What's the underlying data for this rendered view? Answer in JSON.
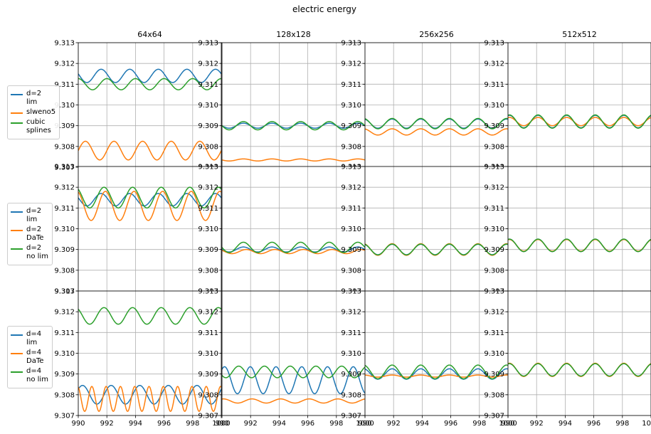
{
  "chart_data": {
    "type": "line",
    "title": "electric energy",
    "column_titles": [
      "64x64",
      "128x128",
      "256x256",
      "512x512"
    ],
    "x_ticks": [
      "990",
      "992",
      "994",
      "996",
      "998",
      "1000"
    ],
    "y_ticks": [
      "9.307",
      "9.308",
      "9.309",
      "9.310",
      "9.311",
      "9.312",
      "9.313"
    ],
    "xlim": [
      990,
      1000
    ],
    "ylim": [
      9.307,
      9.313
    ],
    "grid": true,
    "legend_placement": "left of each row",
    "colors": {
      "blue": "#1f77b4",
      "orange": "#ff7f0e",
      "green": "#2ca02c"
    },
    "rows": [
      {
        "legend": [
          {
            "label": "d=2\nlim",
            "color": "#1f77b4"
          },
          {
            "label": "slweno5",
            "color": "#ff7f0e"
          },
          {
            "label": "cubic\nsplines",
            "color": "#2ca02c"
          }
        ],
        "panels": [
          {
            "series": [
              {
                "color": "#1f77b4",
                "mean": 9.3114,
                "amp": 0.00032,
                "period": 2.0,
                "phase": 0.45
              },
              {
                "color": "#ff7f0e",
                "mean": 9.3078,
                "amp": 0.00045,
                "period": 2.0,
                "phase": 0.0
              },
              {
                "color": "#2ca02c",
                "mean": 9.311,
                "amp": 0.00027,
                "period": 2.0,
                "phase": 0.25
              }
            ]
          },
          {
            "series": [
              {
                "color": "#1f77b4",
                "mean": 9.309,
                "amp": 0.00012,
                "period": 2.0,
                "phase": 0.5
              },
              {
                "color": "#ff7f0e",
                "mean": 9.30735,
                "amp": 5e-05,
                "period": 2.0,
                "phase": 0.5
              },
              {
                "color": "#2ca02c",
                "mean": 9.309,
                "amp": 0.0002,
                "period": 2.0,
                "phase": 0.5
              }
            ]
          },
          {
            "series": [
              {
                "color": "#1f77b4",
                "mean": 9.3091,
                "amp": 0.00022,
                "period": 2.0,
                "phase": 0.3
              },
              {
                "color": "#ff7f0e",
                "mean": 9.3087,
                "amp": 0.00015,
                "period": 2.0,
                "phase": 0.3
              },
              {
                "color": "#2ca02c",
                "mean": 9.3091,
                "amp": 0.00025,
                "period": 2.0,
                "phase": 0.3
              }
            ]
          },
          {
            "series": [
              {
                "color": "#1f77b4",
                "mean": 9.3092,
                "amp": 0.0003,
                "period": 2.0,
                "phase": 0.2
              },
              {
                "color": "#ff7f0e",
                "mean": 9.3092,
                "amp": 0.0002,
                "period": 2.0,
                "phase": 0.2
              },
              {
                "color": "#2ca02c",
                "mean": 9.3092,
                "amp": 0.00032,
                "period": 2.0,
                "phase": 0.2
              }
            ]
          }
        ]
      },
      {
        "legend": [
          {
            "label": "d=2\nlim",
            "color": "#1f77b4"
          },
          {
            "label": "d=2\nDaTe",
            "color": "#ff7f0e"
          },
          {
            "label": "d=2\nno lim",
            "color": "#2ca02c"
          }
        ],
        "panels": [
          {
            "series": [
              {
                "color": "#1f77b4",
                "mean": 9.3114,
                "amp": 0.0003,
                "period": 2.0,
                "phase": 0.45
              },
              {
                "color": "#ff7f0e",
                "mean": 9.3111,
                "amp": 0.0007,
                "period": 2.0,
                "phase": 0.3
              },
              {
                "color": "#2ca02c",
                "mean": 9.3115,
                "amp": 0.0005,
                "period": 2.0,
                "phase": 0.35
              }
            ]
          },
          {
            "series": [
              {
                "color": "#1f77b4",
                "mean": 9.309,
                "amp": 0.00012,
                "period": 2.0,
                "phase": 0.5
              },
              {
                "color": "#ff7f0e",
                "mean": 9.3089,
                "amp": 0.0001,
                "period": 2.0,
                "phase": 0.4
              },
              {
                "color": "#2ca02c",
                "mean": 9.3091,
                "amp": 0.00025,
                "period": 2.0,
                "phase": 0.5
              }
            ]
          },
          {
            "series": [
              {
                "color": "#1f77b4",
                "mean": 9.309,
                "amp": 0.00025,
                "period": 2.0,
                "phase": 0.3
              },
              {
                "color": "#ff7f0e",
                "mean": 9.309,
                "amp": 0.00028,
                "period": 2.0,
                "phase": 0.3
              },
              {
                "color": "#2ca02c",
                "mean": 9.309,
                "amp": 0.00026,
                "period": 2.0,
                "phase": 0.3
              }
            ]
          },
          {
            "series": [
              {
                "color": "#1f77b4",
                "mean": 9.3092,
                "amp": 0.0003,
                "period": 2.0,
                "phase": 0.2
              },
              {
                "color": "#ff7f0e",
                "mean": 9.3092,
                "amp": 0.00028,
                "period": 2.0,
                "phase": 0.2
              },
              {
                "color": "#2ca02c",
                "mean": 9.3092,
                "amp": 0.0003,
                "period": 2.0,
                "phase": 0.2
              }
            ]
          }
        ]
      },
      {
        "legend": [
          {
            "label": "d=4\nlim",
            "color": "#1f77b4"
          },
          {
            "label": "d=4\nDaTe",
            "color": "#ff7f0e"
          },
          {
            "label": "d=4\nno lim",
            "color": "#2ca02c"
          }
        ],
        "panels": [
          {
            "series": [
              {
                "color": "#1f77b4",
                "mean": 9.308,
                "amp": 0.00045,
                "period": 2.0,
                "phase": 0.1
              },
              {
                "color": "#ff7f0e",
                "mean": 9.3078,
                "amp": 0.0006,
                "period": 1.0,
                "phase": 0.3
              },
              {
                "color": "#2ca02c",
                "mean": 9.3118,
                "amp": 0.0004,
                "period": 2.0,
                "phase": 0.35
              }
            ]
          },
          {
            "series": [
              {
                "color": "#1f77b4",
                "mean": 9.3087,
                "amp": 0.00065,
                "period": 1.8,
                "phase": 0.15
              },
              {
                "color": "#ff7f0e",
                "mean": 9.3077,
                "amp": 0.0001,
                "period": 2.0,
                "phase": 0.2
              },
              {
                "color": "#2ca02c",
                "mean": 9.3091,
                "amp": 0.00028,
                "period": 1.8,
                "phase": 0.6
              }
            ]
          },
          {
            "series": [
              {
                "color": "#1f77b4",
                "mean": 9.309,
                "amp": 0.00025,
                "period": 2.0,
                "phase": 0.3
              },
              {
                "color": "#ff7f0e",
                "mean": 9.3089,
                "amp": 5e-05,
                "period": 2.0,
                "phase": 0.3
              },
              {
                "color": "#2ca02c",
                "mean": 9.3091,
                "amp": 0.00033,
                "period": 2.0,
                "phase": 0.3
              }
            ]
          },
          {
            "series": [
              {
                "color": "#1f77b4",
                "mean": 9.3092,
                "amp": 0.0003,
                "period": 2.0,
                "phase": 0.2
              },
              {
                "color": "#ff7f0e",
                "mean": 9.3092,
                "amp": 0.00032,
                "period": 2.0,
                "phase": 0.2
              },
              {
                "color": "#2ca02c",
                "mean": 9.3092,
                "amp": 0.0003,
                "period": 2.0,
                "phase": 0.2
              }
            ]
          }
        ]
      }
    ]
  }
}
